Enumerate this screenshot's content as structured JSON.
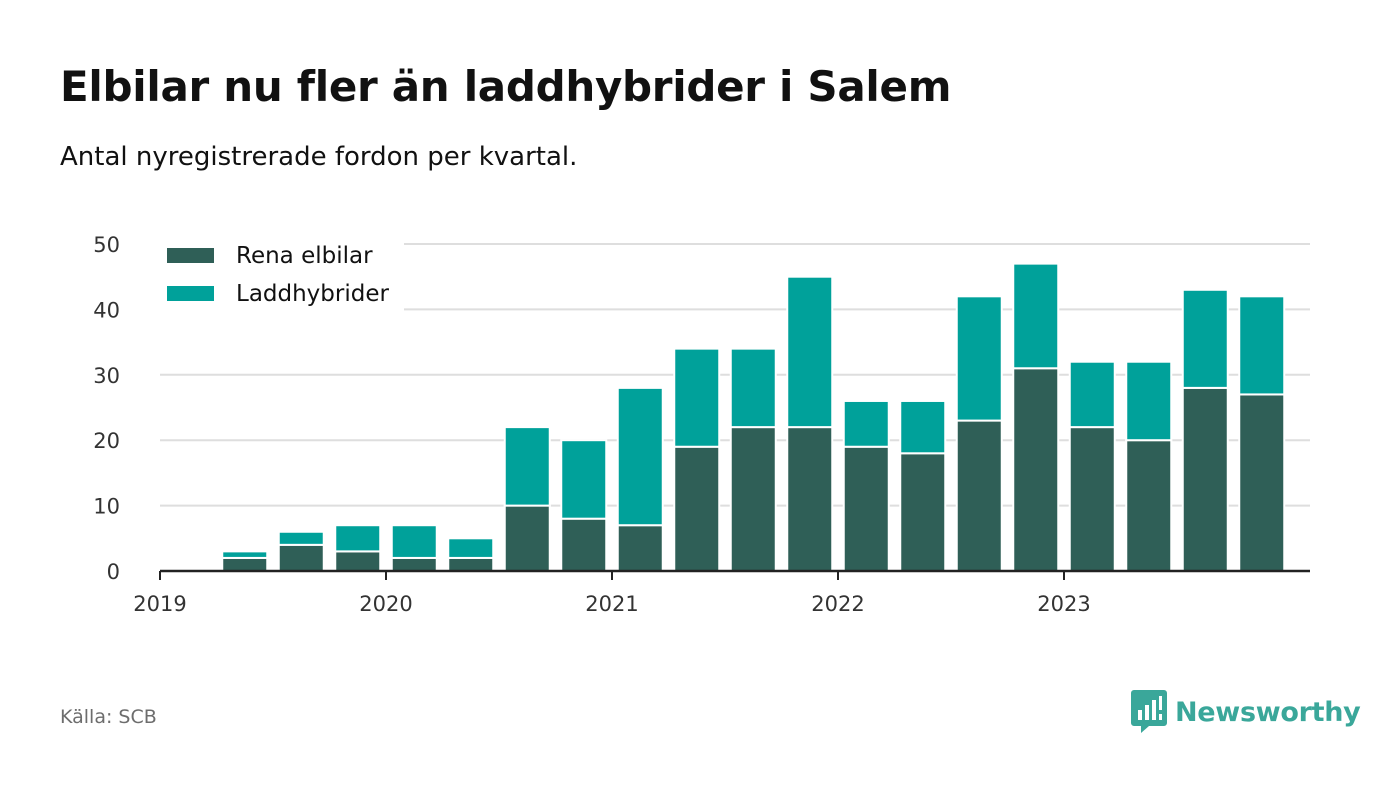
{
  "title": "Elbilar nu fler än laddhybrider i Salem",
  "subtitle": "Antal nyregistrerade fordon per kvartal.",
  "source": "Källa: SCB",
  "brand": {
    "name": "Newsworthy",
    "color": "#3aa79a"
  },
  "chart_data": {
    "type": "bar",
    "stacked": true,
    "categories": [
      "2019 Q1",
      "2019 Q2",
      "2019 Q3",
      "2019 Q4",
      "2020 Q1",
      "2020 Q2",
      "2020 Q3",
      "2020 Q4",
      "2021 Q1",
      "2021 Q2",
      "2021 Q3",
      "2021 Q4",
      "2022 Q1",
      "2022 Q2",
      "2022 Q3",
      "2022 Q4",
      "2023 Q1",
      "2023 Q2",
      "2023 Q3",
      "2023 Q4"
    ],
    "series": [
      {
        "name": "Rena elbilar",
        "color": "#2f5f57",
        "values": [
          0,
          2,
          4,
          3,
          2,
          2,
          10,
          8,
          7,
          19,
          22,
          22,
          19,
          18,
          23,
          31,
          22,
          20,
          28,
          27
        ]
      },
      {
        "name": "Laddhybrider",
        "color": "#00a19a",
        "values": [
          0,
          1,
          2,
          4,
          5,
          3,
          12,
          12,
          21,
          15,
          12,
          23,
          7,
          8,
          19,
          16,
          10,
          12,
          15,
          15
        ]
      }
    ],
    "xticks": [
      "2019",
      "2020",
      "2021",
      "2022",
      "2023"
    ],
    "ylim": [
      0,
      50
    ],
    "yticks": [
      0,
      10,
      20,
      30,
      40,
      50
    ],
    "legend_position": "top-left",
    "grid": true
  }
}
